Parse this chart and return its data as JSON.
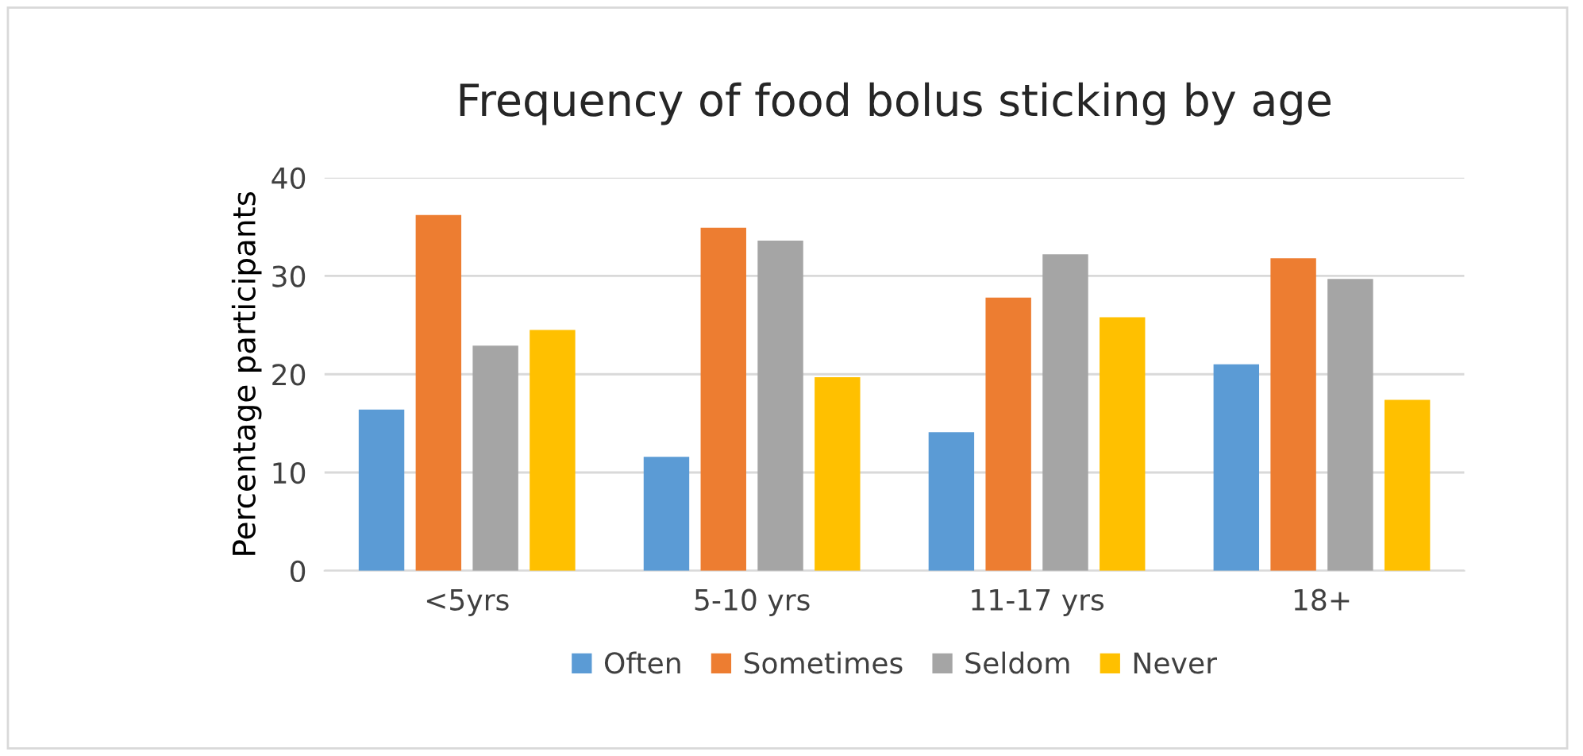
{
  "chart_data": {
    "type": "bar",
    "title": "Frequency of food bolus sticking by age",
    "ylabel": "Percentage participants",
    "categories": [
      "<5yrs",
      "5-10 yrs",
      "11-17 yrs",
      "18+"
    ],
    "series": [
      {
        "name": "Often",
        "color": "#5b9bd5",
        "values": [
          16.4,
          11.6,
          14.1,
          21.0
        ]
      },
      {
        "name": "Sometimes",
        "color": "#ed7d31",
        "values": [
          36.2,
          34.9,
          27.8,
          31.8
        ]
      },
      {
        "name": "Seldom",
        "color": "#a5a5a5",
        "values": [
          22.9,
          33.6,
          32.2,
          29.7
        ]
      },
      {
        "name": "Never",
        "color": "#ffc000",
        "values": [
          24.5,
          19.7,
          25.8,
          17.4
        ]
      }
    ],
    "ylim": [
      0,
      40
    ],
    "yticks": [
      0,
      10,
      20,
      30,
      40
    ],
    "grid": "y",
    "legend": "bottom"
  }
}
